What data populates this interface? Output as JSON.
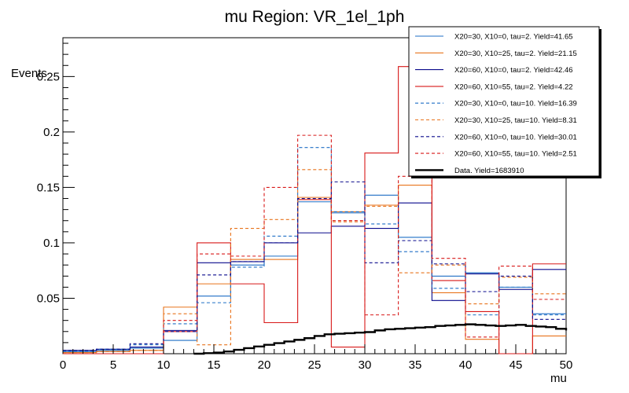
{
  "chart_data": {
    "type": "step-histogram",
    "title": "mu Region: VR_1el_1ph",
    "xlabel": "mu",
    "ylabel": "Events",
    "xlim": [
      0,
      50
    ],
    "ylim": [
      0,
      0.285
    ],
    "xticks": [
      "0",
      "5",
      "10",
      "15",
      "20",
      "25",
      "30",
      "35",
      "40",
      "45",
      "50"
    ],
    "yticks": [
      "0.05",
      "0.1",
      "0.15",
      "0.2",
      "0.25"
    ],
    "bin_edges": [
      0,
      3.33,
      6.67,
      10,
      13.33,
      16.67,
      20,
      23.33,
      26.67,
      30,
      33.33,
      36.67,
      40,
      43.33,
      46.67,
      50
    ],
    "series": [
      {
        "name": "X20=30, X10=0, tau=2. Yield=41.65",
        "color": "#1f6fc5",
        "dash": false,
        "values": [
          0.002,
          0.003,
          0.005,
          0.012,
          0.052,
          0.08,
          0.088,
          0.137,
          0.127,
          0.143,
          0.105,
          0.07,
          0.073,
          0.06,
          0.036
        ]
      },
      {
        "name": "X20=30, X10=25, tau=2. Yield=21.15",
        "color": "#e8731c",
        "dash": false,
        "values": [
          0.001,
          0.002,
          0.003,
          0.042,
          0.063,
          0.085,
          0.085,
          0.141,
          0.128,
          0.134,
          0.152,
          0.055,
          0.013,
          0.0,
          0.016
        ]
      },
      {
        "name": "X20=60, X10=0, tau=2. Yield=42.46",
        "color": "#0a0a8c",
        "dash": false,
        "values": [
          0.003,
          0.004,
          0.006,
          0.021,
          0.082,
          0.083,
          0.1,
          0.109,
          0.115,
          0.113,
          0.136,
          0.048,
          0.072,
          0.058,
          0.076
        ]
      },
      {
        "name": "X20=60, X10=55, tau=2. Yield=4.22",
        "color": "#d81818",
        "dash": false,
        "values": [
          0.0,
          0.0,
          0.0,
          0.02,
          0.1,
          0.063,
          0.028,
          0.139,
          0.006,
          0.181,
          0.259,
          0.066,
          0.038,
          0.0,
          0.081
        ]
      },
      {
        "name": "X20=30, X10=0, tau=10. Yield=16.39",
        "color": "#1f6fc5",
        "dash": true,
        "values": [
          0.002,
          0.004,
          0.008,
          0.027,
          0.046,
          0.078,
          0.106,
          0.186,
          0.128,
          0.117,
          0.092,
          0.059,
          0.035,
          0.06,
          0.035
        ]
      },
      {
        "name": "X20=30, X10=25, tau=10. Yield=8.31",
        "color": "#e8731c",
        "dash": true,
        "values": [
          0.001,
          0.002,
          0.003,
          0.036,
          0.008,
          0.113,
          0.121,
          0.166,
          0.119,
          0.133,
          0.073,
          0.08,
          0.045,
          0.069,
          0.054
        ]
      },
      {
        "name": "X20=60, X10=0, tau=10. Yield=30.01",
        "color": "#0a0a8c",
        "dash": true,
        "values": [
          0.003,
          0.004,
          0.009,
          0.02,
          0.071,
          0.083,
          0.1,
          0.14,
          0.155,
          0.082,
          0.102,
          0.081,
          0.056,
          0.07,
          0.031
        ]
      },
      {
        "name": "X20=60, X10=55, tau=10. Yield=2.51",
        "color": "#d81818",
        "dash": true,
        "values": [
          0.0,
          0.0,
          0.0,
          0.03,
          0.09,
          0.088,
          0.15,
          0.197,
          0.12,
          0.035,
          0.16,
          0.086,
          0.015,
          0.079,
          0.049
        ]
      }
    ],
    "data_series": {
      "name": "Data. Yield=1683910",
      "color": "#000000",
      "x": [
        13,
        14,
        15,
        16,
        17,
        18,
        19,
        20,
        21,
        22,
        23,
        24,
        25,
        26,
        27,
        28,
        29,
        30,
        31,
        32,
        33,
        34,
        35,
        36,
        37,
        38,
        39,
        40,
        41,
        42,
        43,
        44,
        45,
        46,
        47,
        48,
        49,
        50
      ],
      "values": [
        0.0,
        0.0005,
        0.001,
        0.002,
        0.0035,
        0.005,
        0.0065,
        0.008,
        0.0095,
        0.011,
        0.0125,
        0.014,
        0.016,
        0.0175,
        0.018,
        0.0185,
        0.019,
        0.0195,
        0.021,
        0.022,
        0.0225,
        0.023,
        0.0235,
        0.024,
        0.025,
        0.0255,
        0.026,
        0.0265,
        0.026,
        0.0255,
        0.025,
        0.0255,
        0.026,
        0.025,
        0.0245,
        0.024,
        0.0225,
        0.021
      ]
    }
  }
}
